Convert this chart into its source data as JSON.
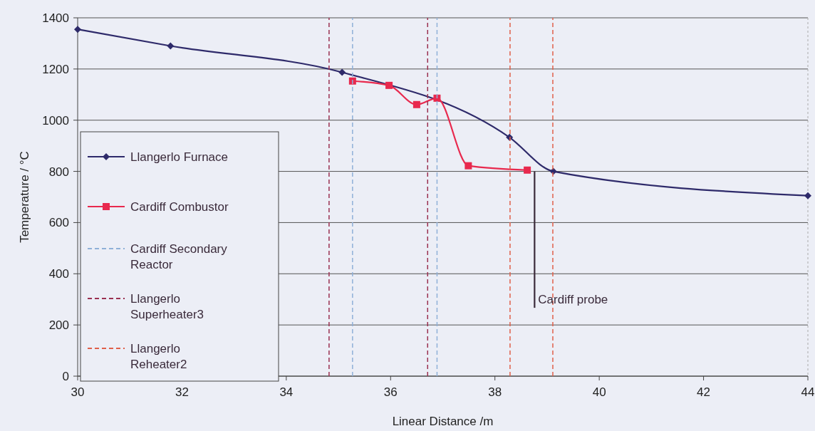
{
  "chart_data": {
    "type": "line",
    "xlabel": "Linear Distance /m",
    "ylabel": "Temperature / °C",
    "xlim": [
      30,
      44
    ],
    "ylim": [
      0,
      1400
    ],
    "xticks": [
      30,
      32,
      34,
      36,
      38,
      40,
      42,
      44
    ],
    "yticks": [
      0,
      200,
      400,
      600,
      800,
      1000,
      1200,
      1400
    ],
    "grid": "y",
    "legend": "left",
    "series": [
      {
        "name": "Llangerlo Furnace",
        "color": "#2e2a6a",
        "marker": "diamond",
        "line_style": "solid",
        "x": [
          30,
          31.78,
          35.07,
          38.28,
          39.12,
          44
        ],
        "values": [
          1355,
          1290,
          1187,
          933,
          800,
          705
        ]
      },
      {
        "name": "Cardiff Combustor",
        "color": "#e8294e",
        "marker": "square",
        "line_style": "solid",
        "x": [
          35.27,
          35.97,
          36.5,
          36.89,
          37.49,
          38.62
        ],
        "values": [
          1153,
          1136,
          1061,
          1086,
          822,
          805
        ]
      },
      {
        "name": "Cardiff Secondary Reactor",
        "color": "#8fb0d8",
        "marker": "none",
        "line_style": "dashed",
        "x": [
          35.27,
          35.27,
          null,
          36.89,
          36.89
        ],
        "values": [
          0,
          1400,
          null,
          0,
          1400
        ]
      },
      {
        "name": "Llangerlo Superheater3",
        "color": "#9a3050",
        "marker": "none",
        "line_style": "dashed",
        "x": [
          34.82,
          34.82,
          null,
          36.71,
          36.71
        ],
        "values": [
          0,
          1400,
          null,
          0,
          1400
        ]
      },
      {
        "name": "Llangerlo Reheater2",
        "color": "#e0604a",
        "marker": "none",
        "line_style": "dashed",
        "x": [
          38.29,
          38.29,
          null,
          39.11,
          39.11
        ],
        "values": [
          0,
          1400,
          null,
          0,
          1400
        ]
      },
      {
        "color": "#3a2a3a",
        "marker": "none",
        "line_style": "solid",
        "x": [
          38.76,
          38.76
        ],
        "values": [
          800,
          267
        ]
      }
    ],
    "annotations": [
      {
        "text": "Cardiff probe",
        "x": 38.76,
        "y": 267
      }
    ]
  }
}
